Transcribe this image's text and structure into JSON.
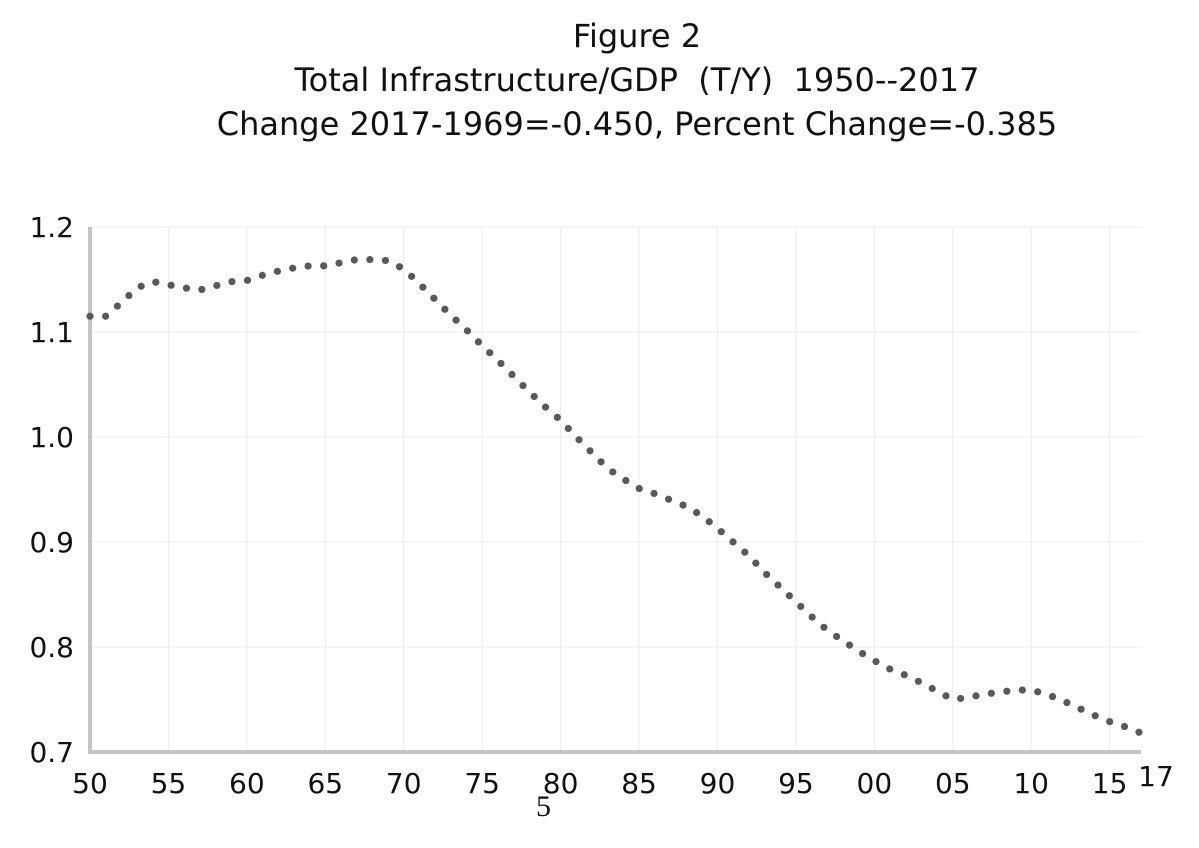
{
  "page_number": "5",
  "chart_data": {
    "type": "scatter",
    "marker": "dotted-line",
    "title": "Figure 2",
    "subtitle": "Total Infrastructure/GDP  (T/Y)  1950--2017",
    "annotation": "Change 2017-1969=-0.450, Percent Change=-0.385",
    "xlabel": "",
    "ylabel": "",
    "xlim": [
      1950,
      2017
    ],
    "ylim": [
      0.7,
      1.2
    ],
    "grid": true,
    "legend": "none",
    "colors": {
      "series": "#595959",
      "axis": "#c4c4c4",
      "grid": "#ececec"
    },
    "x_ticks": [
      {
        "value": 1950,
        "label": "50"
      },
      {
        "value": 1955,
        "label": "55"
      },
      {
        "value": 1960,
        "label": "60"
      },
      {
        "value": 1965,
        "label": "65"
      },
      {
        "value": 1970,
        "label": "70"
      },
      {
        "value": 1975,
        "label": "75"
      },
      {
        "value": 1980,
        "label": "80"
      },
      {
        "value": 1985,
        "label": "85"
      },
      {
        "value": 1990,
        "label": "90"
      },
      {
        "value": 1995,
        "label": "95"
      },
      {
        "value": 2000,
        "label": "00"
      },
      {
        "value": 2005,
        "label": "05"
      },
      {
        "value": 2010,
        "label": "10"
      },
      {
        "value": 2015,
        "label": "15"
      },
      {
        "value": 2017,
        "label": "17"
      }
    ],
    "y_ticks": [
      {
        "value": 0.7,
        "label": "0.7"
      },
      {
        "value": 0.8,
        "label": "0.8"
      },
      {
        "value": 0.9,
        "label": "0.9"
      },
      {
        "value": 1.0,
        "label": "1.0"
      },
      {
        "value": 1.1,
        "label": "1.1"
      },
      {
        "value": 1.2,
        "label": "1.2"
      }
    ],
    "series": [
      {
        "x": [
          1950,
          1951,
          1952,
          1953,
          1954,
          1955,
          1956,
          1957,
          1958,
          1959,
          1960,
          1961,
          1962,
          1963,
          1964,
          1965,
          1966,
          1967,
          1968,
          1969,
          1970,
          1971,
          1972,
          1973,
          1974,
          1975,
          1976,
          1977,
          1978,
          1979,
          1980,
          1981,
          1982,
          1983,
          1984,
          1985,
          1986,
          1987,
          1988,
          1989,
          1990,
          1991,
          1992,
          1993,
          1994,
          1995,
          1996,
          1997,
          1998,
          1999,
          2000,
          2001,
          2002,
          2003,
          2004,
          2005,
          2006,
          2007,
          2008,
          2009,
          2010,
          2011,
          2012,
          2013,
          2014,
          2015,
          2016,
          2017
        ],
        "values": [
          1.115,
          1.115,
          1.128,
          1.142,
          1.148,
          1.145,
          1.142,
          1.14,
          1.144,
          1.148,
          1.149,
          1.154,
          1.158,
          1.161,
          1.163,
          1.163,
          1.166,
          1.169,
          1.169,
          1.168,
          1.16,
          1.146,
          1.131,
          1.116,
          1.102,
          1.087,
          1.073,
          1.058,
          1.043,
          1.029,
          1.016,
          1.0,
          0.985,
          0.97,
          0.96,
          0.951,
          0.946,
          0.94,
          0.934,
          0.925,
          0.913,
          0.9,
          0.887,
          0.871,
          0.857,
          0.843,
          0.829,
          0.816,
          0.806,
          0.796,
          0.787,
          0.779,
          0.773,
          0.766,
          0.758,
          0.75,
          0.752,
          0.755,
          0.757,
          0.759,
          0.759,
          0.755,
          0.749,
          0.742,
          0.735,
          0.729,
          0.724,
          0.718
        ]
      }
    ]
  }
}
